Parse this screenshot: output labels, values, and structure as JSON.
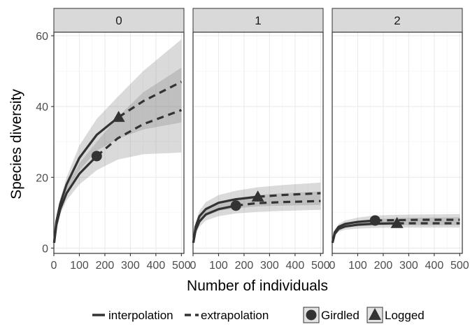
{
  "chart_data": {
    "type": "line",
    "title": "",
    "xlabel": "Number of individuals",
    "ylabel": "Species diversity",
    "xlim": [
      0,
      510
    ],
    "ylim": [
      -1.5,
      61
    ],
    "x_ticks": [
      0,
      100,
      200,
      300,
      400,
      500
    ],
    "y_ticks": [
      0,
      20,
      40,
      60
    ],
    "grid": true,
    "legend_position": "bottom",
    "legend": {
      "linetypes": [
        {
          "name": "interpolation",
          "style": "solid"
        },
        {
          "name": "extrapolation",
          "style": "dashed"
        }
      ],
      "groups": [
        {
          "name": "Girdled",
          "shape": "circle"
        },
        {
          "name": "Logged",
          "shape": "triangle"
        }
      ]
    },
    "colors": {
      "line": "#333333",
      "band": "#bdbdbd",
      "strip_bg": "#d9d9d9",
      "panel_border": "#333333"
    },
    "panels": [
      {
        "label": "0",
        "series": [
          {
            "name": "Girdled",
            "observed": {
              "x": 168,
              "y": 26
            },
            "max_x": 500,
            "x": [
              1,
              10,
              25,
              50,
              100,
              168,
              250,
              350,
              500
            ],
            "y": [
              1.5,
              6.5,
              11,
              15.5,
              21,
              26,
              31,
              35,
              39
            ],
            "lower": [
              1.5,
              5.5,
              9.5,
              13.5,
              18,
              22,
              25,
              26.5,
              27
            ],
            "upper": [
              1.5,
              7.5,
              12.5,
              17.5,
              24,
              30,
              37,
              44,
              51
            ]
          },
          {
            "name": "Logged",
            "observed": {
              "x": 254,
              "y": 37
            },
            "max_x": 500,
            "x": [
              1,
              10,
              25,
              50,
              100,
              168,
              254,
              350,
              500
            ],
            "y": [
              1.5,
              7.5,
              12.5,
              18,
              25.5,
              32,
              37,
              41.5,
              47
            ],
            "lower": [
              1.5,
              6.5,
              11,
              16,
              22,
              27.5,
              31,
              33.5,
              35.5
            ],
            "upper": [
              1.5,
              8.5,
              14,
              20,
              29,
              36.5,
              43,
              50,
              59
            ]
          }
        ]
      },
      {
        "label": "1",
        "series": [
          {
            "name": "Girdled",
            "observed": {
              "x": 168,
              "y": 12
            },
            "max_x": 500,
            "x": [
              1,
              10,
              25,
              50,
              100,
              168,
              250,
              350,
              500
            ],
            "y": [
              1.5,
              5,
              7.5,
              9.5,
              11,
              12,
              12.7,
              13,
              13.3
            ],
            "lower": [
              1.5,
              4,
              6,
              7.8,
              9,
              9.8,
              10.2,
              10.5,
              10.8
            ],
            "upper": [
              1.5,
              6,
              9,
              11.5,
              13,
              14,
              15,
              15.5,
              16
            ]
          },
          {
            "name": "Logged",
            "observed": {
              "x": 254,
              "y": 14.5
            },
            "max_x": 500,
            "x": [
              1,
              10,
              25,
              50,
              100,
              168,
              254,
              350,
              500
            ],
            "y": [
              1.5,
              6,
              9,
              11,
              12.8,
              13.8,
              14.5,
              15,
              15.5
            ],
            "lower": [
              1.5,
              5,
              7.5,
              9,
              10.5,
              11.2,
              11.8,
              12,
              12.2
            ],
            "upper": [
              1.5,
              7,
              10.5,
              13,
              15,
              16.2,
              17.2,
              17.8,
              18.5
            ]
          }
        ]
      },
      {
        "label": "2",
        "series": [
          {
            "name": "Girdled",
            "observed": {
              "x": 168,
              "y": 7.8
            },
            "max_x": 500,
            "x": [
              1,
              10,
              25,
              50,
              100,
              168,
              250,
              350,
              500
            ],
            "y": [
              1.5,
              4.5,
              6,
              6.8,
              7.4,
              7.8,
              7.9,
              8,
              8
            ],
            "lower": [
              1.5,
              4,
              5.2,
              5.8,
              6.2,
              6.4,
              6.5,
              6.5,
              6.5
            ],
            "upper": [
              1.5,
              5,
              6.8,
              7.8,
              8.6,
              9.2,
              9.4,
              9.5,
              9.6
            ]
          },
          {
            "name": "Logged",
            "observed": {
              "x": 254,
              "y": 7
            },
            "max_x": 500,
            "x": [
              1,
              10,
              25,
              50,
              100,
              168,
              254,
              350,
              500
            ],
            "y": [
              1.5,
              4,
              5.4,
              6.1,
              6.6,
              6.9,
              7,
              7,
              7
            ],
            "lower": [
              1.5,
              3.5,
              4.6,
              5.2,
              5.5,
              5.7,
              5.8,
              5.8,
              5.8
            ],
            "upper": [
              1.5,
              4.5,
              6.2,
              7,
              7.7,
              8.2,
              8.5,
              8.6,
              8.7
            ]
          }
        ]
      }
    ]
  }
}
